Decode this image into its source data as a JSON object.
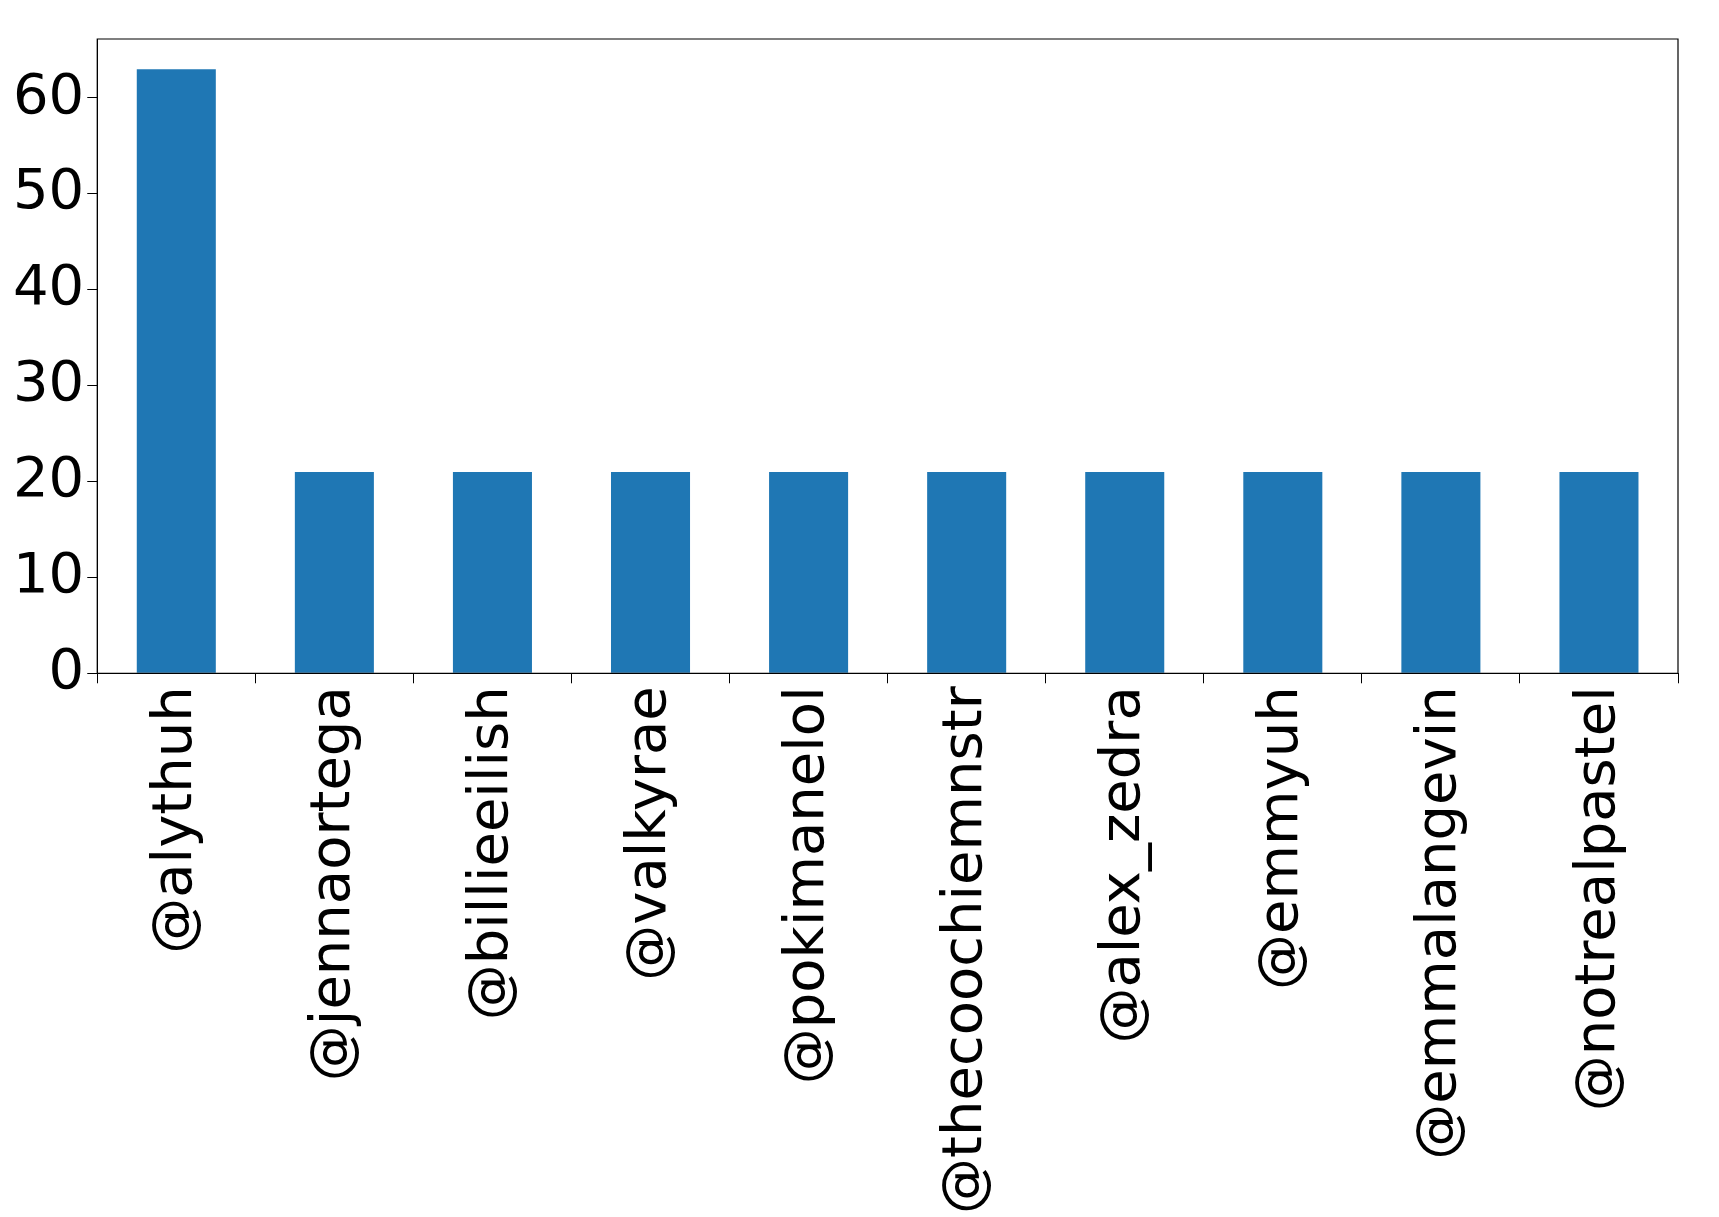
{
  "chart_data": {
    "type": "bar",
    "categories": [
      "@alythuh",
      "@jennaortega",
      "@billieeilish",
      "@valkyrae",
      "@pokimanelol",
      "@thecoochiemnstr",
      "@alex_zedra",
      "@emmyuh",
      "@emmalangevin",
      "@notrealpastel"
    ],
    "values": [
      63,
      21,
      21,
      21,
      21,
      21,
      21,
      21,
      21,
      21
    ],
    "color": "#1f77b4",
    "ylim": [
      0,
      66.15
    ],
    "yticks": [
      0,
      10,
      20,
      30,
      40,
      50,
      60
    ],
    "grid": false,
    "legend": false
  }
}
